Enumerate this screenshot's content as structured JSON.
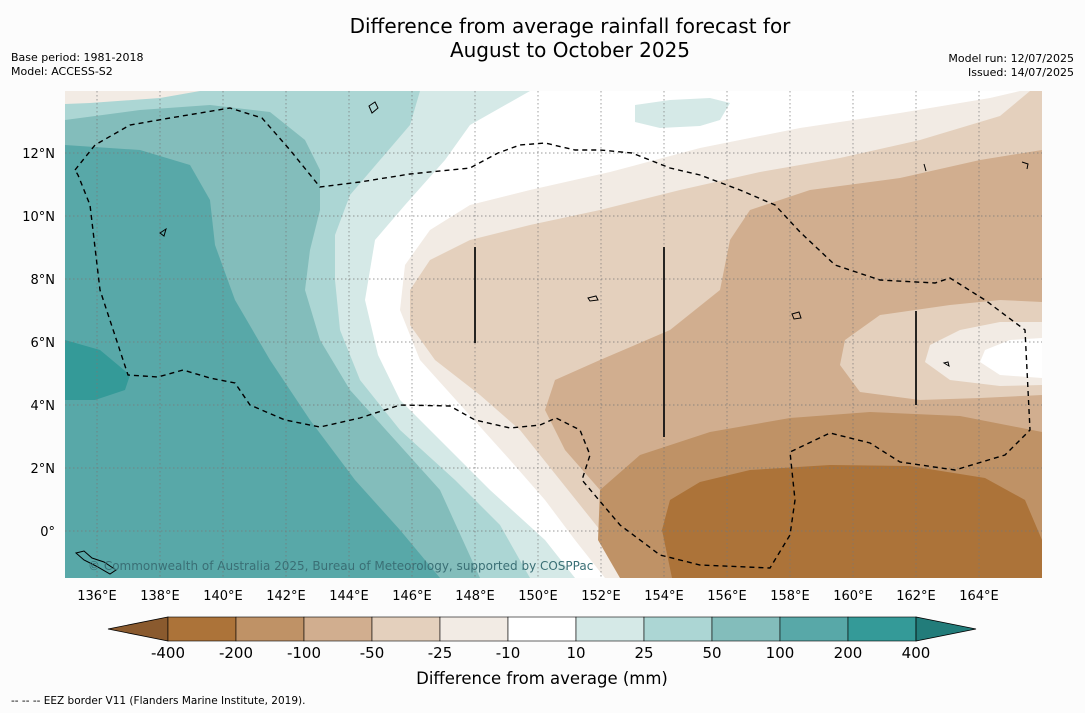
{
  "header": {
    "title": "Difference from average rainfall forecast for\nAugust to October 2025",
    "base_period": "Base period: 1981-2018",
    "model": "Model: ACCESS-S2",
    "model_run": "Model run: 12/07/2025",
    "issued": "Issued: 14/07/2025"
  },
  "map": {
    "lon_range": [
      135,
      166
    ],
    "lat_range": [
      -1.5,
      14
    ],
    "x_ticks": [
      "136°E",
      "138°E",
      "140°E",
      "142°E",
      "144°E",
      "146°E",
      "148°E",
      "150°E",
      "152°E",
      "154°E",
      "156°E",
      "158°E",
      "160°E",
      "162°E",
      "164°E"
    ],
    "y_ticks": [
      "12°N",
      "10°N",
      "8°N",
      "6°N",
      "4°N",
      "2°N",
      "0°"
    ],
    "copyright": "© Commonwealth of Australia 2025, Bureau of Meteorology, supported by COSPPac"
  },
  "colorbar": {
    "title": "Difference from average (mm)",
    "labels": [
      "-400",
      "-200",
      "-100",
      "-50",
      "-25",
      "-10",
      "10",
      "25",
      "50",
      "100",
      "200",
      "400"
    ],
    "colors": [
      "#8a5a2e",
      "#ac7339",
      "#bf9266",
      "#d1ae8f",
      "#e4d0bd",
      "#f2ebe4",
      "#ffffff",
      "#d5e9e7",
      "#acd6d4",
      "#83bdbb",
      "#58a8a8",
      "#349a98",
      "#227c7a"
    ]
  },
  "footnote": "--  --  -- EEZ border V11 (Flanders Marine Institute, 2019)."
}
